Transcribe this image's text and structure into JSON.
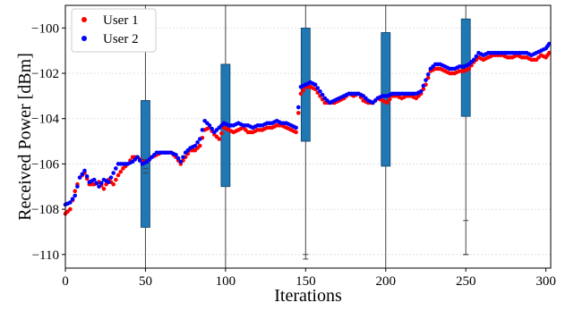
{
  "chart_data": {
    "type": "scatter",
    "xlabel": "Iterations",
    "ylabel": "Received Power [dBm]",
    "xlim": [
      0,
      303
    ],
    "ylim": [
      -110.6,
      -99.0
    ],
    "xticks": [
      0,
      50,
      100,
      150,
      200,
      250,
      300
    ],
    "yticks": [
      -110,
      -108,
      -106,
      -104,
      -102,
      -100
    ],
    "grid": "horizontal dotted",
    "legend_position": "top-left",
    "series": [
      {
        "name": "User 1",
        "color": "#ff0000",
        "x": [
          0,
          3,
          6,
          9,
          12,
          15,
          18,
          21,
          24,
          27,
          30,
          33,
          36,
          39,
          42,
          45,
          48,
          51,
          54,
          57,
          60,
          63,
          66,
          69,
          72,
          75,
          78,
          81,
          84,
          87,
          90,
          93,
          96,
          99,
          102,
          105,
          108,
          111,
          114,
          117,
          120,
          123,
          126,
          129,
          132,
          135,
          138,
          141,
          144,
          147,
          150,
          153,
          156,
          159,
          162,
          165,
          168,
          171,
          174,
          177,
          180,
          183,
          186,
          189,
          192,
          195,
          198,
          201,
          204,
          207,
          210,
          213,
          216,
          219,
          222,
          225,
          228,
          231,
          234,
          237,
          240,
          243,
          246,
          249,
          252,
          255,
          258,
          261,
          264,
          267,
          270,
          273,
          276,
          279,
          282,
          285,
          288,
          291,
          294,
          297,
          300,
          302
        ],
        "y": [
          -108.2,
          -108.0,
          -107.2,
          -106.6,
          -106.4,
          -106.9,
          -106.9,
          -106.8,
          -107.1,
          -106.7,
          -106.9,
          -106.5,
          -106.2,
          -106.0,
          -105.7,
          -105.7,
          -105.9,
          -105.9,
          -105.7,
          -105.6,
          -105.5,
          -105.5,
          -105.5,
          -105.7,
          -106.0,
          -105.7,
          -105.4,
          -105.4,
          -105.2,
          -104.5,
          -104.4,
          -104.7,
          -104.9,
          -104.4,
          -104.5,
          -104.6,
          -104.5,
          -104.4,
          -104.6,
          -104.6,
          -104.5,
          -104.5,
          -104.4,
          -104.4,
          -104.3,
          -104.3,
          -104.4,
          -104.5,
          -104.6,
          -102.9,
          -102.6,
          -102.6,
          -102.7,
          -103.0,
          -103.3,
          -103.3,
          -103.3,
          -103.2,
          -103.1,
          -102.9,
          -103.0,
          -102.9,
          -103.2,
          -103.3,
          -103.3,
          -103.1,
          -103.2,
          -103.3,
          -103.0,
          -103.0,
          -103.1,
          -103.0,
          -103.0,
          -103.1,
          -102.9,
          -102.5,
          -101.9,
          -101.8,
          -101.8,
          -101.9,
          -102.0,
          -102.0,
          -101.9,
          -101.9,
          -101.8,
          -101.5,
          -101.3,
          -101.4,
          -101.3,
          -101.2,
          -101.2,
          -101.2,
          -101.3,
          -101.3,
          -101.2,
          -101.3,
          -101.3,
          -101.4,
          -101.4,
          -101.2,
          -101.3,
          -101.1
        ]
      },
      {
        "name": "User 2",
        "color": "#0000ff",
        "x": [
          0,
          3,
          6,
          9,
          12,
          15,
          18,
          21,
          24,
          27,
          30,
          33,
          36,
          39,
          42,
          45,
          48,
          51,
          54,
          57,
          60,
          63,
          66,
          69,
          72,
          75,
          78,
          81,
          84,
          87,
          90,
          93,
          96,
          99,
          102,
          105,
          108,
          111,
          114,
          117,
          120,
          123,
          126,
          129,
          132,
          135,
          138,
          141,
          144,
          147,
          150,
          153,
          156,
          159,
          162,
          165,
          168,
          171,
          174,
          177,
          180,
          183,
          186,
          189,
          192,
          195,
          198,
          201,
          204,
          207,
          210,
          213,
          216,
          219,
          222,
          225,
          228,
          231,
          234,
          237,
          240,
          243,
          246,
          249,
          252,
          255,
          258,
          261,
          264,
          267,
          270,
          273,
          276,
          279,
          282,
          285,
          288,
          291,
          294,
          297,
          300,
          302
        ],
        "y": [
          -107.8,
          -107.7,
          -107.4,
          -106.6,
          -106.3,
          -106.8,
          -106.7,
          -107.0,
          -106.7,
          -106.8,
          -106.4,
          -106.0,
          -106.0,
          -106.0,
          -105.9,
          -105.7,
          -106.0,
          -105.9,
          -105.7,
          -105.5,
          -105.5,
          -105.5,
          -105.5,
          -105.6,
          -105.9,
          -105.5,
          -105.3,
          -105.2,
          -104.9,
          -104.1,
          -104.3,
          -104.6,
          -104.4,
          -104.2,
          -104.3,
          -104.3,
          -104.2,
          -104.3,
          -104.3,
          -104.4,
          -104.3,
          -104.3,
          -104.2,
          -104.2,
          -104.1,
          -104.2,
          -104.2,
          -104.3,
          -104.4,
          -102.6,
          -102.5,
          -102.4,
          -102.5,
          -102.8,
          -103.1,
          -103.3,
          -103.2,
          -103.1,
          -103.0,
          -102.9,
          -102.9,
          -102.9,
          -103.0,
          -103.2,
          -103.3,
          -103.1,
          -103.0,
          -103.0,
          -102.9,
          -102.9,
          -102.9,
          -102.9,
          -102.9,
          -102.9,
          -102.8,
          -102.3,
          -101.8,
          -101.6,
          -101.6,
          -101.7,
          -101.8,
          -101.8,
          -101.7,
          -101.7,
          -101.6,
          -101.4,
          -101.1,
          -101.2,
          -101.1,
          -101.1,
          -101.1,
          -101.1,
          -101.1,
          -101.1,
          -101.1,
          -101.1,
          -101.1,
          -101.2,
          -101.1,
          -101.0,
          -100.9,
          -100.7
        ]
      }
    ],
    "boxplots": [
      {
        "x": 50,
        "whisker_low": -110.6,
        "q1": -108.8,
        "median": -105.8,
        "q3": -103.2,
        "whisker_high": -99.0,
        "fliers": [
          -106.2,
          -106.4
        ]
      },
      {
        "x": 100,
        "whisker_low": -110.6,
        "q1": -107.0,
        "median": -104.3,
        "q3": -101.6,
        "whisker_high": -99.0,
        "fliers": []
      },
      {
        "x": 150,
        "whisker_low": -110.2,
        "q1": -105.0,
        "median": -102.6,
        "q3": -100.0,
        "whisker_high": -99.0,
        "fliers": [
          -110.0
        ]
      },
      {
        "x": 200,
        "whisker_low": -110.6,
        "q1": -106.1,
        "median": -103.2,
        "q3": -100.2,
        "whisker_high": -99.0,
        "fliers": []
      },
      {
        "x": 250,
        "whisker_low": -110.0,
        "q1": -103.9,
        "median": -101.8,
        "q3": -99.6,
        "whisker_high": -99.0,
        "fliers": [
          -108.5,
          -110.0
        ]
      }
    ],
    "box_color": "#1f77b4"
  }
}
